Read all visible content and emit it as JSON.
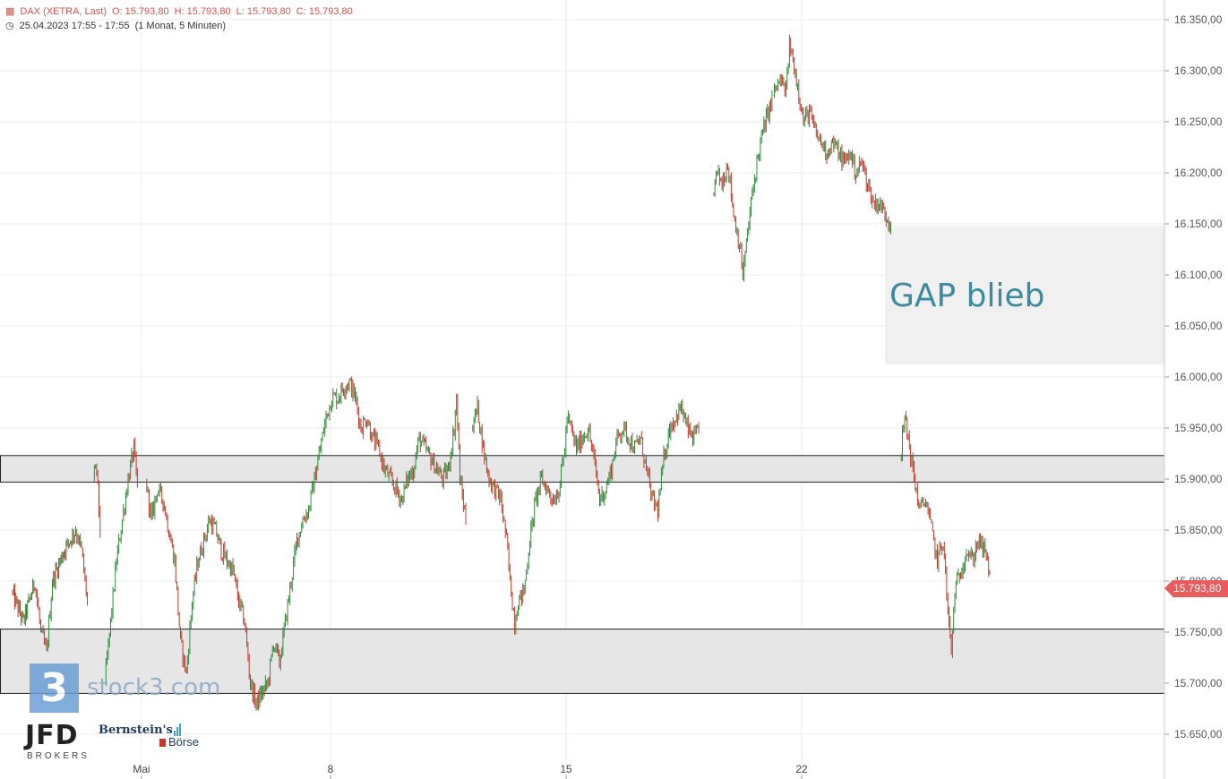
{
  "header": {
    "instrument": "DAX (XETRA, Last)",
    "open": "O: 15.793,80",
    "high": "H: 15.793,80",
    "low": "L: 15.793,80",
    "close": "C: 15.793,80",
    "datetime": "25.04.2023 17:55 - 17:55",
    "interval": "(1 Monat, 5 Minuten)",
    "colors": {
      "header_text": "#d9534f",
      "candle_up": "#2e8b3a",
      "candle_down": "#c0392b",
      "price_tag": "#e85c5c"
    }
  },
  "current_price": "15.793,80",
  "annotation": {
    "text": "GAP blieb"
  },
  "watermark": {
    "badge": "3",
    "site": "stock3.com"
  },
  "sponsors": {
    "jfd": "JFD",
    "jfd_sub": "BROKERS",
    "bernstein_l1": "Bernstein's",
    "bernstein_l2": "Börse"
  },
  "chart_data": {
    "type": "candlestick",
    "title": "DAX (XETRA, Last)",
    "y_axis": {
      "ylim": [
        15620,
        16370
      ],
      "ticks": [
        15650,
        15700,
        15750,
        15800,
        15850,
        15900,
        15950,
        16000,
        16050,
        16100,
        16150,
        16200,
        16250,
        16300,
        16350
      ],
      "tick_labels": [
        "15.650,00",
        "15.700,00",
        "15.750,00",
        "15.800,00",
        "15.850,00",
        "15.900,00",
        "15.950,00",
        "16.000,00",
        "16.050,00",
        "16.100,00",
        "16.150,00",
        "16.200,00",
        "16.250,00",
        "16.300,00",
        "16.350,00"
      ]
    },
    "x_axis": {
      "ticks": [
        {
          "label": "Mai",
          "frac": 0.1215
        },
        {
          "label": "8",
          "frac": 0.2838
        },
        {
          "label": "15",
          "frac": 0.4862
        },
        {
          "label": "22",
          "frac": 0.6885
        }
      ]
    },
    "grid": true,
    "zones": [
      {
        "name": "resistance-zone",
        "y0": 15897,
        "y1": 15923
      },
      {
        "name": "support-zone",
        "y0": 15690,
        "y1": 15753
      },
      {
        "name": "gap-zone",
        "y0": 16012,
        "y1": 16148,
        "x0_frac": 0.76,
        "x1_frac": 1.0
      }
    ],
    "price_path": [
      [
        0.0,
        15820
      ],
      [
        0.005,
        15700
      ],
      [
        0.01,
        15790
      ],
      [
        0.02,
        15760
      ],
      [
        0.03,
        15800
      ],
      [
        0.035,
        15750
      ],
      [
        0.04,
        15730
      ],
      [
        0.045,
        15800
      ],
      [
        0.055,
        15830
      ],
      [
        0.065,
        15850
      ],
      [
        0.07,
        15830
      ],
      [
        0.075,
        15780
      ],
      [
        0.08,
        15900
      ],
      [
        0.083,
        15910
      ],
      [
        0.086,
        15850
      ],
      [
        0.09,
        15700
      ],
      [
        0.095,
        15760
      ],
      [
        0.1,
        15820
      ],
      [
        0.105,
        15860
      ],
      [
        0.11,
        15900
      ],
      [
        0.115,
        15930
      ],
      [
        0.118,
        15890
      ],
      [
        0.121,
        16010
      ],
      [
        0.125,
        15900
      ],
      [
        0.13,
        15860
      ],
      [
        0.135,
        15890
      ],
      [
        0.14,
        15880
      ],
      [
        0.145,
        15850
      ],
      [
        0.15,
        15820
      ],
      [
        0.155,
        15740
      ],
      [
        0.16,
        15710
      ],
      [
        0.165,
        15780
      ],
      [
        0.17,
        15820
      ],
      [
        0.175,
        15840
      ],
      [
        0.18,
        15860
      ],
      [
        0.185,
        15850
      ],
      [
        0.19,
        15830
      ],
      [
        0.195,
        15820
      ],
      [
        0.2,
        15810
      ],
      [
        0.205,
        15780
      ],
      [
        0.21,
        15760
      ],
      [
        0.215,
        15700
      ],
      [
        0.22,
        15680
      ],
      [
        0.225,
        15690
      ],
      [
        0.23,
        15700
      ],
      [
        0.235,
        15740
      ],
      [
        0.24,
        15720
      ],
      [
        0.245,
        15760
      ],
      [
        0.25,
        15800
      ],
      [
        0.255,
        15840
      ],
      [
        0.26,
        15860
      ],
      [
        0.265,
        15870
      ],
      [
        0.27,
        15900
      ],
      [
        0.275,
        15930
      ],
      [
        0.28,
        15960
      ],
      [
        0.285,
        15980
      ],
      [
        0.29,
        15980
      ],
      [
        0.295,
        15990
      ],
      [
        0.3,
        15995
      ],
      [
        0.305,
        15980
      ],
      [
        0.31,
        15950
      ],
      [
        0.315,
        15960
      ],
      [
        0.32,
        15940
      ],
      [
        0.325,
        15930
      ],
      [
        0.33,
        15910
      ],
      [
        0.335,
        15900
      ],
      [
        0.34,
        15890
      ],
      [
        0.345,
        15880
      ],
      [
        0.35,
        15900
      ],
      [
        0.355,
        15910
      ],
      [
        0.36,
        15940
      ],
      [
        0.365,
        15930
      ],
      [
        0.37,
        15920
      ],
      [
        0.375,
        15910
      ],
      [
        0.38,
        15900
      ],
      [
        0.385,
        15910
      ],
      [
        0.39,
        15950
      ],
      [
        0.392,
        15980
      ],
      [
        0.395,
        15900
      ],
      [
        0.4,
        15860
      ],
      [
        0.405,
        15950
      ],
      [
        0.41,
        15970
      ],
      [
        0.415,
        15930
      ],
      [
        0.42,
        15900
      ],
      [
        0.425,
        15890
      ],
      [
        0.43,
        15880
      ],
      [
        0.435,
        15840
      ],
      [
        0.438,
        15800
      ],
      [
        0.442,
        15760
      ],
      [
        0.445,
        15780
      ],
      [
        0.45,
        15790
      ],
      [
        0.455,
        15840
      ],
      [
        0.46,
        15880
      ],
      [
        0.465,
        15900
      ],
      [
        0.47,
        15890
      ],
      [
        0.475,
        15880
      ],
      [
        0.48,
        15890
      ],
      [
        0.485,
        15930
      ],
      [
        0.487,
        15960
      ],
      [
        0.49,
        15950
      ],
      [
        0.495,
        15930
      ],
      [
        0.5,
        15940
      ],
      [
        0.505,
        15950
      ],
      [
        0.51,
        15920
      ],
      [
        0.515,
        15880
      ],
      [
        0.52,
        15890
      ],
      [
        0.525,
        15910
      ],
      [
        0.53,
        15940
      ],
      [
        0.535,
        15950
      ],
      [
        0.54,
        15940
      ],
      [
        0.545,
        15930
      ],
      [
        0.55,
        15940
      ],
      [
        0.555,
        15910
      ],
      [
        0.56,
        15880
      ],
      [
        0.565,
        15870
      ],
      [
        0.57,
        15920
      ],
      [
        0.575,
        15950
      ],
      [
        0.58,
        15960
      ],
      [
        0.585,
        15970
      ],
      [
        0.59,
        15950
      ],
      [
        0.595,
        15940
      ],
      [
        0.6,
        15945
      ],
      [
        0.608,
        16070
      ],
      [
        0.612,
        16180
      ],
      [
        0.616,
        16200
      ],
      [
        0.62,
        16190
      ],
      [
        0.625,
        16210
      ],
      [
        0.63,
        16160
      ],
      [
        0.635,
        16130
      ],
      [
        0.638,
        16100
      ],
      [
        0.642,
        16140
      ],
      [
        0.645,
        16170
      ],
      [
        0.65,
        16210
      ],
      [
        0.655,
        16240
      ],
      [
        0.66,
        16260
      ],
      [
        0.665,
        16280
      ],
      [
        0.67,
        16290
      ],
      [
        0.675,
        16280
      ],
      [
        0.678,
        16325
      ],
      [
        0.681,
        16310
      ],
      [
        0.686,
        16280
      ],
      [
        0.69,
        16250
      ],
      [
        0.695,
        16260
      ],
      [
        0.7,
        16240
      ],
      [
        0.705,
        16230
      ],
      [
        0.71,
        16220
      ],
      [
        0.715,
        16230
      ],
      [
        0.72,
        16220
      ],
      [
        0.725,
        16210
      ],
      [
        0.73,
        16220
      ],
      [
        0.735,
        16200
      ],
      [
        0.74,
        16210
      ],
      [
        0.745,
        16190
      ],
      [
        0.75,
        16170
      ],
      [
        0.755,
        16170
      ],
      [
        0.76,
        16160
      ],
      [
        0.765,
        16150
      ],
      [
        0.77,
        16010
      ],
      [
        0.773,
        15920
      ],
      [
        0.777,
        15960
      ],
      [
        0.78,
        15940
      ],
      [
        0.785,
        15900
      ],
      [
        0.79,
        15870
      ],
      [
        0.795,
        15880
      ],
      [
        0.8,
        15850
      ],
      [
        0.805,
        15820
      ],
      [
        0.81,
        15840
      ],
      [
        0.814,
        15770
      ],
      [
        0.817,
        15730
      ],
      [
        0.82,
        15790
      ],
      [
        0.825,
        15810
      ],
      [
        0.83,
        15830
      ],
      [
        0.835,
        15820
      ],
      [
        0.84,
        15840
      ],
      [
        0.845,
        15830
      ],
      [
        0.85,
        15810
      ],
      [
        0.847,
        15800
      ]
    ]
  }
}
